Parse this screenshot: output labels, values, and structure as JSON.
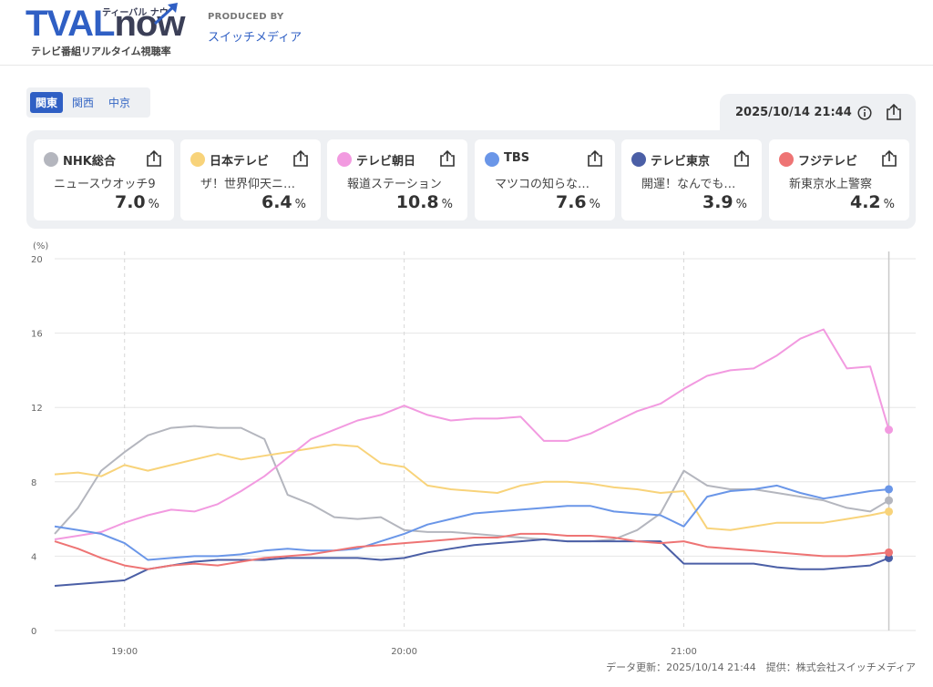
{
  "header": {
    "logo_tval": "TVAL",
    "logo_now": "now",
    "logo_kana": "ティーバル ナウ",
    "logo_sub": "テレビ番組リアルタイム視聴率",
    "produced_label": "PRODUCED BY",
    "produced_name": "スイッチメディア"
  },
  "region_tabs": [
    {
      "label": "関東",
      "active": true
    },
    {
      "label": "関西",
      "active": false
    },
    {
      "label": "中京",
      "active": false
    }
  ],
  "datetime": "2025/10/14 21:44",
  "icons": {
    "info": "info-icon",
    "share": "share-icon"
  },
  "channels": [
    {
      "name": "NHK総合",
      "program": "ニュースウオッチ9",
      "rating": "7.0",
      "unit": "%",
      "color": "#b4b6be"
    },
    {
      "name": "日本テレビ",
      "program": "ザ！世界仰天ニ…",
      "rating": "6.4",
      "unit": "%",
      "color": "#f8d37a"
    },
    {
      "name": "テレビ朝日",
      "program": "報道ステーション",
      "rating": "10.8",
      "unit": "%",
      "color": "#f29ae0"
    },
    {
      "name": "TBS",
      "program": "マツコの知らな…",
      "rating": "7.6",
      "unit": "%",
      "color": "#6a96e8"
    },
    {
      "name": "テレビ東京",
      "program": "開運！なんでも…",
      "rating": "3.9",
      "unit": "%",
      "color": "#4b5fa6"
    },
    {
      "name": "フジテレビ",
      "program": "新東京水上警察",
      "rating": "4.2",
      "unit": "%",
      "color": "#ee7474"
    }
  ],
  "chart_data": {
    "type": "line",
    "ylabel": "(%)",
    "ylim": [
      0,
      20
    ],
    "yticks": [
      0,
      4,
      8,
      12,
      16,
      20
    ],
    "xlim": [
      "18:45",
      "21:48"
    ],
    "xticks": [
      "19:00",
      "20:00",
      "21:00"
    ],
    "grid": true,
    "x": [
      "18:45",
      "18:50",
      "18:55",
      "19:00",
      "19:05",
      "19:10",
      "19:15",
      "19:20",
      "19:25",
      "19:30",
      "19:35",
      "19:40",
      "19:45",
      "19:50",
      "19:55",
      "20:00",
      "20:05",
      "20:10",
      "20:15",
      "20:20",
      "20:25",
      "20:30",
      "20:35",
      "20:40",
      "20:45",
      "20:50",
      "20:55",
      "21:00",
      "21:05",
      "21:10",
      "21:15",
      "21:20",
      "21:25",
      "21:30",
      "21:35",
      "21:40",
      "21:44"
    ],
    "series": [
      {
        "name": "NHK総合",
        "color": "#b4b6be",
        "values": [
          5.2,
          6.6,
          8.6,
          9.6,
          10.5,
          10.9,
          11.0,
          10.9,
          10.9,
          10.3,
          7.3,
          6.8,
          6.1,
          6.0,
          6.1,
          5.4,
          5.3,
          5.3,
          5.2,
          5.1,
          5.0,
          4.9,
          4.8,
          4.8,
          4.9,
          5.4,
          6.3,
          8.6,
          7.8,
          7.6,
          7.6,
          7.4,
          7.2,
          7.0,
          6.6,
          6.4,
          7.0
        ]
      },
      {
        "name": "日本テレビ",
        "color": "#f8d37a",
        "values": [
          8.4,
          8.5,
          8.3,
          8.9,
          8.6,
          8.9,
          9.2,
          9.5,
          9.2,
          9.4,
          9.6,
          9.8,
          10.0,
          9.9,
          9.0,
          8.8,
          7.8,
          7.6,
          7.5,
          7.4,
          7.8,
          8.0,
          8.0,
          7.9,
          7.7,
          7.6,
          7.4,
          7.5,
          5.5,
          5.4,
          5.6,
          5.8,
          5.8,
          5.8,
          6.0,
          6.2,
          6.4
        ]
      },
      {
        "name": "テレビ朝日",
        "color": "#f29ae0",
        "values": [
          4.9,
          5.1,
          5.3,
          5.8,
          6.2,
          6.5,
          6.4,
          6.8,
          7.5,
          8.3,
          9.3,
          10.3,
          10.8,
          11.3,
          11.6,
          12.1,
          11.6,
          11.3,
          11.4,
          11.4,
          11.5,
          10.2,
          10.2,
          10.6,
          11.2,
          11.8,
          12.2,
          13.0,
          13.7,
          14.0,
          14.1,
          14.8,
          15.7,
          16.2,
          14.1,
          14.2,
          10.8
        ]
      },
      {
        "name": "TBS",
        "color": "#6a96e8",
        "values": [
          5.6,
          5.4,
          5.2,
          4.7,
          3.8,
          3.9,
          4.0,
          4.0,
          4.1,
          4.3,
          4.4,
          4.3,
          4.3,
          4.4,
          4.8,
          5.2,
          5.7,
          6.0,
          6.3,
          6.4,
          6.5,
          6.6,
          6.7,
          6.7,
          6.4,
          6.3,
          6.2,
          5.6,
          7.2,
          7.5,
          7.6,
          7.8,
          7.4,
          7.1,
          7.3,
          7.5,
          7.6
        ]
      },
      {
        "name": "テレビ東京",
        "color": "#4b5fa6",
        "values": [
          2.4,
          2.5,
          2.6,
          2.7,
          3.3,
          3.5,
          3.7,
          3.8,
          3.8,
          3.8,
          3.9,
          3.9,
          3.9,
          3.9,
          3.8,
          3.9,
          4.2,
          4.4,
          4.6,
          4.7,
          4.8,
          4.9,
          4.8,
          4.8,
          4.8,
          4.8,
          4.8,
          3.6,
          3.6,
          3.6,
          3.6,
          3.4,
          3.3,
          3.3,
          3.4,
          3.5,
          3.9
        ]
      },
      {
        "name": "フジテレビ",
        "color": "#ee7474",
        "values": [
          4.8,
          4.4,
          3.9,
          3.5,
          3.3,
          3.5,
          3.6,
          3.5,
          3.7,
          3.9,
          4.0,
          4.1,
          4.3,
          4.5,
          4.6,
          4.7,
          4.8,
          4.9,
          5.0,
          5.0,
          5.2,
          5.2,
          5.1,
          5.1,
          5.0,
          4.8,
          4.7,
          4.8,
          4.5,
          4.4,
          4.3,
          4.2,
          4.1,
          4.0,
          4.0,
          4.1,
          4.2
        ]
      }
    ]
  },
  "footer": "データ更新：2025/10/14 21:44　提供：株式会社スイッチメディア"
}
